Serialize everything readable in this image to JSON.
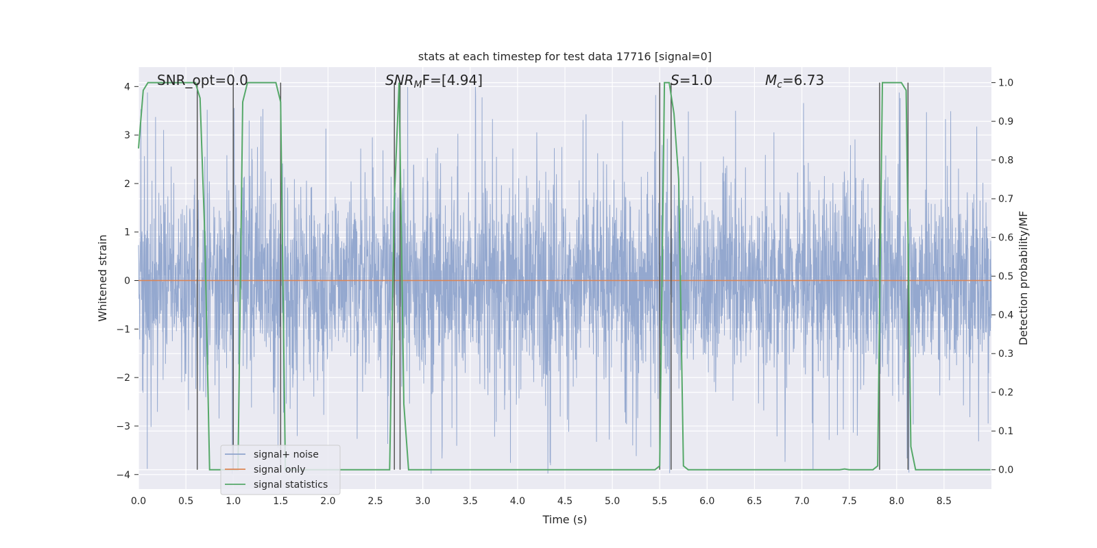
{
  "chart_data": {
    "type": "line",
    "title": "stats at each timestep for test data 17716 [signal=0]",
    "xlabel": "Time (s)",
    "ylabel": "Whitened strain",
    "ylabel_right": "Detection probability/MF",
    "xlim": [
      0.0,
      9.0
    ],
    "ylim": [
      -4.3,
      4.4
    ],
    "ylim_right": [
      -0.05,
      1.04
    ],
    "x_ticks": [
      0.0,
      0.5,
      1.0,
      1.5,
      2.0,
      2.5,
      3.0,
      3.5,
      4.0,
      4.5,
      5.0,
      5.5,
      6.0,
      6.5,
      7.0,
      7.5,
      8.0,
      8.5
    ],
    "x_tick_labels": [
      "0.0",
      "0.5",
      "1.0",
      "1.5",
      "2.0",
      "2.5",
      "3.0",
      "3.5",
      "4.0",
      "4.5",
      "5.0",
      "5.5",
      "6.0",
      "6.5",
      "7.0",
      "7.5",
      "8.0",
      "8.5"
    ],
    "y_ticks": [
      -4,
      -3,
      -2,
      -1,
      0,
      1,
      2,
      3,
      4
    ],
    "y_tick_labels": [
      "−4",
      "−3",
      "−2",
      "−1",
      "0",
      "1",
      "2",
      "3",
      "4"
    ],
    "y_ticks_right": [
      0.0,
      0.1,
      0.2,
      0.3,
      0.4,
      0.5,
      0.6,
      0.7,
      0.8,
      0.9,
      1.0
    ],
    "y_tick_labels_right": [
      "0.0",
      "0.1",
      "0.2",
      "0.3",
      "0.4",
      "0.5",
      "0.6",
      "0.7",
      "0.8",
      "0.9",
      "1.0"
    ],
    "grid": true,
    "legend": {
      "position": "lower-left",
      "entries": [
        "signal+ noise",
        "signal only",
        "signal statistics"
      ]
    },
    "annotations": [
      {
        "text": "SNR_opt=0.0",
        "x": 0.2,
        "y": 4.05
      },
      {
        "text_main": "SNR",
        "text_sub": "M",
        "text_tail": "F=[4.94]",
        "x": 2.6,
        "y": 4.05
      },
      {
        "text_main": "S",
        "text_sub": "",
        "text_tail": "=1.0",
        "x": 5.6,
        "y": 4.05
      },
      {
        "text_main": "M",
        "text_sub": "c",
        "text_tail": "=6.73",
        "x": 6.6,
        "y": 4.05
      }
    ],
    "vertical_lines_x": [
      0.62,
      1.0,
      1.5,
      2.7,
      2.76,
      5.5,
      5.62,
      7.82,
      8.12
    ],
    "series": [
      {
        "name": "signal+ noise",
        "color": "#8fa4cc",
        "description_free": true,
        "amplitude_bulk": 1.6,
        "amplitude_peak": 4.0
      },
      {
        "name": "signal only",
        "color": "#dd8452",
        "values_constant": 0.0
      },
      {
        "name": "signal statistics",
        "color": "#55a868",
        "axis": "right",
        "x": [
          0.0,
          0.05,
          0.1,
          0.6,
          0.65,
          0.7,
          0.75,
          1.05,
          1.1,
          1.15,
          1.45,
          1.5,
          1.55,
          2.6,
          2.65,
          2.7,
          2.75,
          2.8,
          2.85,
          2.9,
          4.4,
          5.45,
          5.5,
          5.55,
          5.6,
          5.65,
          5.7,
          5.75,
          5.8,
          7.4,
          7.45,
          7.5,
          7.75,
          7.8,
          7.85,
          7.9,
          8.05,
          8.1,
          8.15,
          8.2,
          8.25,
          8.3,
          8.35,
          8.99
        ],
        "y": [
          0.83,
          0.98,
          1.0,
          1.0,
          0.96,
          0.6,
          0.0,
          0.0,
          0.95,
          1.0,
          1.0,
          0.95,
          0.0,
          0.0,
          0.0,
          0.7,
          1.0,
          0.17,
          0.0,
          0.0,
          0.0,
          0.0,
          0.01,
          1.0,
          1.0,
          0.92,
          0.75,
          0.01,
          0.0,
          0.0,
          0.002,
          0.0,
          0.0,
          0.01,
          1.0,
          1.0,
          1.0,
          0.98,
          0.06,
          0.0,
          0.0,
          0.0,
          0.0,
          0.0
        ]
      }
    ]
  },
  "colors": {
    "plot_background": "#eaeaf2",
    "grid": "#ffffff",
    "vertical_line": "#555555"
  }
}
